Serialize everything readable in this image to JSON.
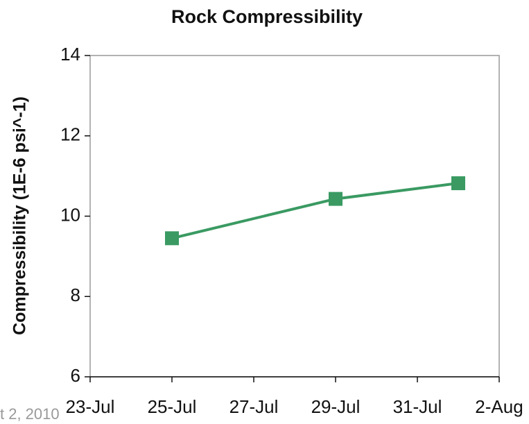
{
  "chart_data": {
    "type": "line",
    "title": "Rock Compressibility",
    "y_label": "Compressibility (1E-6 psi^-1)",
    "x": [
      "25-Jul",
      "29-Jul",
      "1-Aug"
    ],
    "series": [
      {
        "name": "Compressibility",
        "color": "#3a9a62",
        "values": [
          9.45,
          10.43,
          10.82
        ]
      }
    ],
    "xlim": [
      "23-Jul",
      "2-Aug"
    ],
    "xticks": [
      "23-Jul",
      "25-Jul",
      "27-Jul",
      "29-Jul",
      "31-Jul",
      "2-Aug"
    ],
    "ylim": [
      6,
      14
    ],
    "yticks": [
      6,
      8,
      10,
      12,
      14
    ],
    "grid": false
  },
  "footer": "t 2, 2010"
}
